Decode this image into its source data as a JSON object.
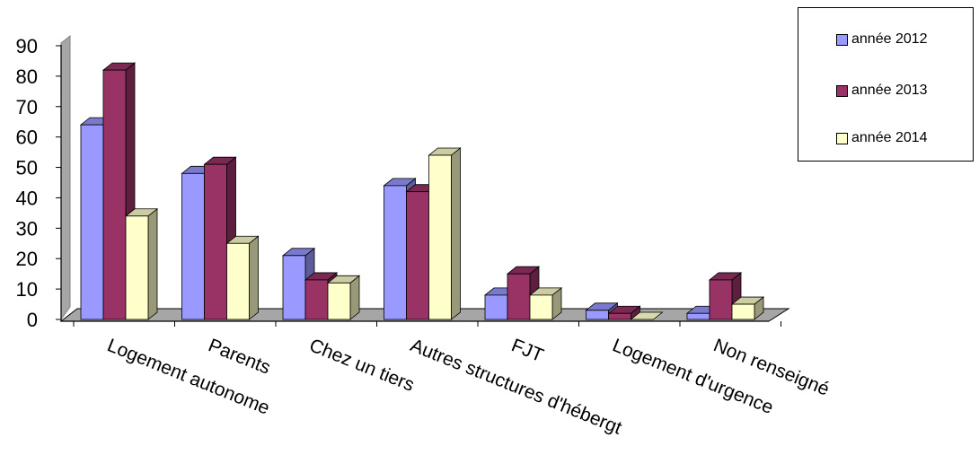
{
  "chart_data": {
    "type": "bar",
    "categories": [
      "Logement autonome",
      "Parents",
      "Chez un tiers",
      "Autres structures d'hébergt",
      "FJT",
      "Logement d'urgence",
      "Non renseigné"
    ],
    "series": [
      {
        "name": "année 2012",
        "color": "#9999ff",
        "values": [
          64,
          48,
          21,
          44,
          8,
          3,
          2
        ]
      },
      {
        "name": "année 2013",
        "color": "#993366",
        "values": [
          82,
          51,
          13,
          42,
          15,
          2,
          13
        ]
      },
      {
        "name": "année 2014",
        "color": "#ffffcc",
        "values": [
          34,
          25,
          12,
          54,
          8,
          0,
          5
        ]
      }
    ],
    "yticks": [
      "0",
      "10",
      "20",
      "30",
      "40",
      "50",
      "60",
      "70",
      "80",
      "90"
    ],
    "ylim": [
      0,
      90
    ],
    "chart_style": "3d-bar",
    "legend_position": "top-right",
    "grid": false
  }
}
